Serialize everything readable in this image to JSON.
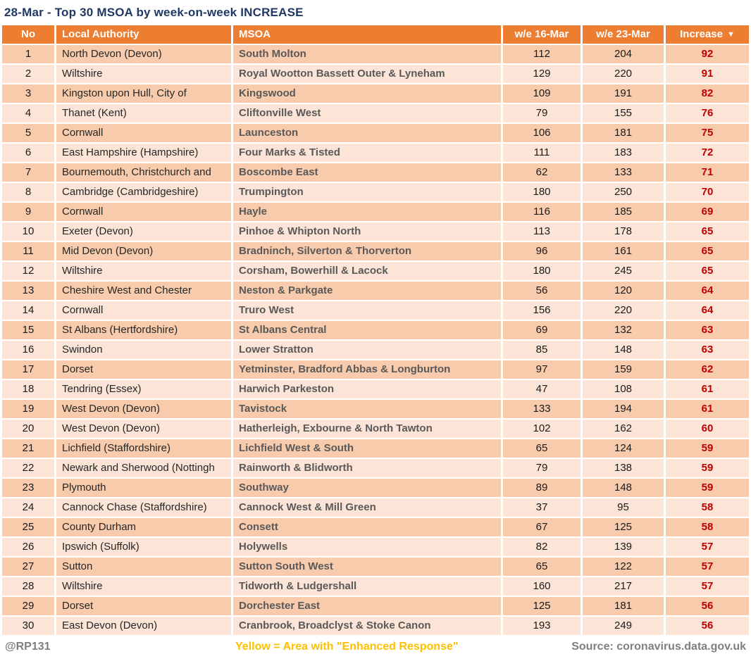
{
  "title": "28-Mar - Top 30 MSOA by week-on-week INCREASE",
  "colors": {
    "header_bg": "#ED7D31",
    "row_dark_bg": "#F8CBAD",
    "row_light_bg": "#FCE4D6",
    "title_color": "#203864",
    "increase_color": "#C00000",
    "msoa_text": "#595959",
    "footer_gray": "#7F7F7F",
    "footer_yellow": "#FFC000"
  },
  "chart_data": {
    "type": "table",
    "title": "28-Mar - Top 30 MSOA by week-on-week INCREASE",
    "sort_icon": "▼",
    "columns": [
      {
        "label": "No",
        "align": "center"
      },
      {
        "label": "Local Authority",
        "align": "left"
      },
      {
        "label": "MSOA",
        "align": "left"
      },
      {
        "label": "w/e 16-Mar",
        "align": "center"
      },
      {
        "label": "w/e 23-Mar",
        "align": "center"
      },
      {
        "label": "Increase",
        "align": "center",
        "sorted": "descending"
      }
    ],
    "rows": [
      {
        "no": 1,
        "local_authority": "North Devon (Devon)",
        "msoa": "South Molton",
        "we_16_mar": 112,
        "we_23_mar": 204,
        "increase": 92
      },
      {
        "no": 2,
        "local_authority": "Wiltshire",
        "msoa": "Royal Wootton Bassett Outer & Lyneham",
        "we_16_mar": 129,
        "we_23_mar": 220,
        "increase": 91
      },
      {
        "no": 3,
        "local_authority": "Kingston upon Hull, City of",
        "msoa": "Kingswood",
        "we_16_mar": 109,
        "we_23_mar": 191,
        "increase": 82
      },
      {
        "no": 4,
        "local_authority": "Thanet (Kent)",
        "msoa": "Cliftonville West",
        "we_16_mar": 79,
        "we_23_mar": 155,
        "increase": 76
      },
      {
        "no": 5,
        "local_authority": "Cornwall",
        "msoa": "Launceston",
        "we_16_mar": 106,
        "we_23_mar": 181,
        "increase": 75
      },
      {
        "no": 6,
        "local_authority": "East Hampshire (Hampshire)",
        "msoa": "Four Marks & Tisted",
        "we_16_mar": 111,
        "we_23_mar": 183,
        "increase": 72
      },
      {
        "no": 7,
        "local_authority": "Bournemouth, Christchurch and",
        "msoa": "Boscombe East",
        "we_16_mar": 62,
        "we_23_mar": 133,
        "increase": 71
      },
      {
        "no": 8,
        "local_authority": "Cambridge (Cambridgeshire)",
        "msoa": "Trumpington",
        "we_16_mar": 180,
        "we_23_mar": 250,
        "increase": 70
      },
      {
        "no": 9,
        "local_authority": "Cornwall",
        "msoa": "Hayle",
        "we_16_mar": 116,
        "we_23_mar": 185,
        "increase": 69
      },
      {
        "no": 10,
        "local_authority": "Exeter (Devon)",
        "msoa": "Pinhoe & Whipton North",
        "we_16_mar": 113,
        "we_23_mar": 178,
        "increase": 65
      },
      {
        "no": 11,
        "local_authority": "Mid Devon (Devon)",
        "msoa": "Bradninch, Silverton & Thorverton",
        "we_16_mar": 96,
        "we_23_mar": 161,
        "increase": 65
      },
      {
        "no": 12,
        "local_authority": "Wiltshire",
        "msoa": "Corsham, Bowerhill & Lacock",
        "we_16_mar": 180,
        "we_23_mar": 245,
        "increase": 65
      },
      {
        "no": 13,
        "local_authority": "Cheshire West and Chester",
        "msoa": "Neston & Parkgate",
        "we_16_mar": 56,
        "we_23_mar": 120,
        "increase": 64
      },
      {
        "no": 14,
        "local_authority": "Cornwall",
        "msoa": "Truro West",
        "we_16_mar": 156,
        "we_23_mar": 220,
        "increase": 64
      },
      {
        "no": 15,
        "local_authority": "St Albans (Hertfordshire)",
        "msoa": "St Albans Central",
        "we_16_mar": 69,
        "we_23_mar": 132,
        "increase": 63
      },
      {
        "no": 16,
        "local_authority": "Swindon",
        "msoa": "Lower Stratton",
        "we_16_mar": 85,
        "we_23_mar": 148,
        "increase": 63
      },
      {
        "no": 17,
        "local_authority": "Dorset",
        "msoa": "Yetminster, Bradford Abbas & Longburton",
        "we_16_mar": 97,
        "we_23_mar": 159,
        "increase": 62
      },
      {
        "no": 18,
        "local_authority": "Tendring (Essex)",
        "msoa": "Harwich Parkeston",
        "we_16_mar": 47,
        "we_23_mar": 108,
        "increase": 61
      },
      {
        "no": 19,
        "local_authority": "West Devon (Devon)",
        "msoa": "Tavistock",
        "we_16_mar": 133,
        "we_23_mar": 194,
        "increase": 61
      },
      {
        "no": 20,
        "local_authority": "West Devon (Devon)",
        "msoa": "Hatherleigh, Exbourne & North Tawton",
        "we_16_mar": 102,
        "we_23_mar": 162,
        "increase": 60
      },
      {
        "no": 21,
        "local_authority": "Lichfield (Staffordshire)",
        "msoa": "Lichfield West & South",
        "we_16_mar": 65,
        "we_23_mar": 124,
        "increase": 59
      },
      {
        "no": 22,
        "local_authority": "Newark and Sherwood (Nottingh",
        "msoa": "Rainworth & Blidworth",
        "we_16_mar": 79,
        "we_23_mar": 138,
        "increase": 59
      },
      {
        "no": 23,
        "local_authority": "Plymouth",
        "msoa": "Southway",
        "we_16_mar": 89,
        "we_23_mar": 148,
        "increase": 59
      },
      {
        "no": 24,
        "local_authority": "Cannock Chase (Staffordshire)",
        "msoa": "Cannock West & Mill Green",
        "we_16_mar": 37,
        "we_23_mar": 95,
        "increase": 58
      },
      {
        "no": 25,
        "local_authority": "County Durham",
        "msoa": "Consett",
        "we_16_mar": 67,
        "we_23_mar": 125,
        "increase": 58
      },
      {
        "no": 26,
        "local_authority": "Ipswich (Suffolk)",
        "msoa": "Holywells",
        "we_16_mar": 82,
        "we_23_mar": 139,
        "increase": 57
      },
      {
        "no": 27,
        "local_authority": "Sutton",
        "msoa": "Sutton South West",
        "we_16_mar": 65,
        "we_23_mar": 122,
        "increase": 57
      },
      {
        "no": 28,
        "local_authority": "Wiltshire",
        "msoa": "Tidworth & Ludgershall",
        "we_16_mar": 160,
        "we_23_mar": 217,
        "increase": 57
      },
      {
        "no": 29,
        "local_authority": "Dorset",
        "msoa": "Dorchester East",
        "we_16_mar": 125,
        "we_23_mar": 181,
        "increase": 56
      },
      {
        "no": 30,
        "local_authority": "East Devon (Devon)",
        "msoa": "Cranbrook, Broadclyst & Stoke Canon",
        "we_16_mar": 193,
        "we_23_mar": 249,
        "increase": 56
      }
    ]
  },
  "footer": {
    "handle": "@RP131",
    "note": "Yellow = Area with \"Enhanced Response\"",
    "source": "Source: coronavirus.data.gov.uk"
  }
}
